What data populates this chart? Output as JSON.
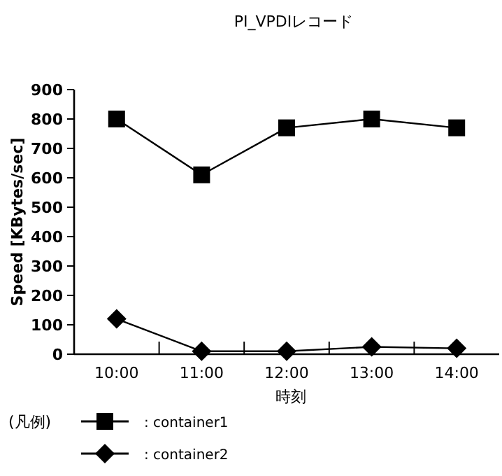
{
  "chart_data": {
    "type": "line",
    "title": "PI_VPDIレコード",
    "xlabel": "時刻",
    "ylabel": "Speed [KBytes/sec]",
    "legend_title": "(凡例)",
    "categories": [
      "10:00",
      "11:00",
      "12:00",
      "13:00",
      "14:00"
    ],
    "series": [
      {
        "name": ": container1",
        "color": "#000000",
        "marker": "square",
        "values": [
          800,
          610,
          770,
          800,
          770
        ]
      },
      {
        "name": ": container2",
        "color": "#000000",
        "marker": "diamond",
        "values": [
          120,
          10,
          10,
          25,
          20
        ]
      }
    ],
    "ylim": [
      0,
      900
    ],
    "yticks": [
      0,
      100,
      200,
      300,
      400,
      500,
      600,
      700,
      800,
      900
    ],
    "grid": false,
    "legend": "bottom",
    "line_style": "solid"
  }
}
